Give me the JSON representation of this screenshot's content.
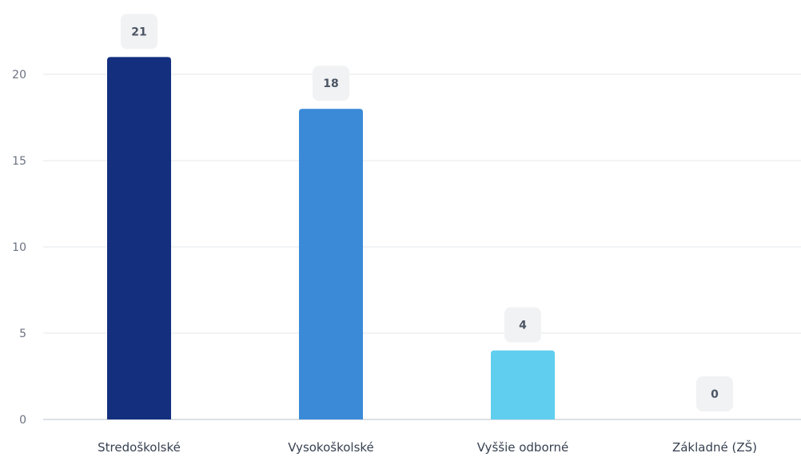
{
  "chart_data": {
    "type": "bar",
    "title": "",
    "xlabel": "",
    "ylabel": "",
    "categories": [
      "Stredoškolské",
      "Vysokoškolské",
      "Vyššie odborné",
      "Základné (ZŠ)"
    ],
    "values": [
      21,
      18,
      4,
      0
    ],
    "bar_colors": [
      "#132f7e",
      "#3a8ad8",
      "#60ceef",
      "#60ceef"
    ],
    "ylim": [
      0,
      20
    ],
    "yticks": [
      0,
      5,
      10,
      15,
      20
    ],
    "grid": true,
    "legend": "none",
    "data_label_bg": "#f1f2f4",
    "grid_color": "#e5e7eb",
    "baseline_color": "#d1d5db"
  }
}
